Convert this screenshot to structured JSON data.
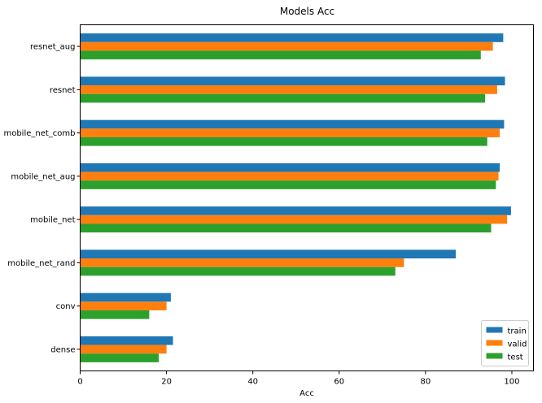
{
  "chart_data": {
    "type": "bar",
    "orientation": "horizontal",
    "title": "Models Acc",
    "xlabel": "Acc",
    "ylabel": "",
    "xlim": [
      0,
      105
    ],
    "xticks": [
      0,
      20,
      40,
      60,
      80,
      100
    ],
    "grid": false,
    "legend_position": "lower-right",
    "categories": [
      "dense",
      "conv",
      "mobile_net_rand",
      "mobile_net",
      "mobile_net_aug",
      "mobile_net_comb",
      "resnet",
      "resnet_aug"
    ],
    "series": [
      {
        "name": "train",
        "color": "#1f77b4",
        "values": [
          21.5,
          21.0,
          87.0,
          99.8,
          97.2,
          98.2,
          98.4,
          98.0
        ]
      },
      {
        "name": "valid",
        "color": "#ff7f0e",
        "values": [
          20.0,
          20.0,
          75.0,
          98.9,
          96.9,
          97.2,
          96.6,
          95.6
        ]
      },
      {
        "name": "test",
        "color": "#2ca02c",
        "values": [
          18.2,
          16.0,
          73.0,
          95.2,
          96.3,
          94.3,
          93.8,
          92.8
        ]
      }
    ]
  }
}
